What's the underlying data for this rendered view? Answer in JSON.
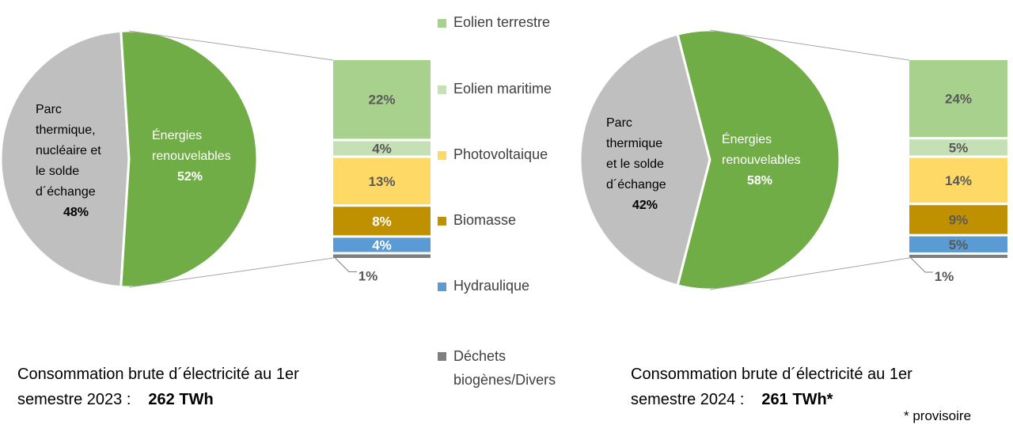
{
  "legend": [
    {
      "label": "Eolien terrestre",
      "color": "#A9D18E"
    },
    {
      "label": "Eolien maritime",
      "color": "#C5E0B4"
    },
    {
      "label": "Photovoltaique",
      "color": "#FFD966"
    },
    {
      "label": "Biomasse",
      "color": "#BF9000"
    },
    {
      "label": "Hydraulique",
      "color": "#5B9BD5"
    },
    {
      "label_lines": [
        "Déchets",
        "biogènes/Divers"
      ],
      "color": "#7F7F7F"
    }
  ],
  "chart_data": [
    {
      "type": "pie",
      "slices": [
        {
          "label_lines": [
            "Parc",
            "thermique,",
            "nucléaire et",
            "le solde",
            "d´échange"
          ],
          "value": 48,
          "value_label": "48%",
          "color": "#BFBFBF"
        },
        {
          "label_lines": [
            "Énergies",
            "renouvelables"
          ],
          "value": 52,
          "value_label": "52%",
          "color": "#70AD47"
        }
      ],
      "breakdown": {
        "type": "stacked-bar",
        "of": "Énergies renouvelables",
        "categories": [
          "Eolien terrestre",
          "Eolien maritime",
          "Photovoltaique",
          "Biomasse",
          "Hydraulique",
          "Déchets biogènes/Divers"
        ],
        "values": [
          22,
          4,
          13,
          8,
          4,
          1
        ],
        "labels": [
          "22%",
          "4%",
          "13%",
          "8%",
          "4%",
          "1%"
        ],
        "label_colors": [
          "#595959",
          "#595959",
          "#595959",
          "#FFFFFF",
          "#FFFFFF",
          "#595959"
        ]
      },
      "caption": {
        "line1": "Consommation brute d´électricité  au 1er",
        "line2": "semestre 2023 :",
        "total": "262 TWh"
      }
    },
    {
      "type": "pie",
      "slices": [
        {
          "label_lines": [
            "Parc",
            "thermique",
            "et le solde",
            "d´échange"
          ],
          "value": 42,
          "value_label": "42%",
          "color": "#BFBFBF"
        },
        {
          "label_lines": [
            "Énergies",
            "renouvelables"
          ],
          "value": 58,
          "value_label": "58%",
          "color": "#70AD47"
        }
      ],
      "breakdown": {
        "type": "stacked-bar",
        "of": "Énergies renouvelables",
        "categories": [
          "Eolien terrestre",
          "Eolien maritime",
          "Photovoltaique",
          "Biomasse",
          "Hydraulique",
          "Déchets biogènes/Divers"
        ],
        "values": [
          24,
          5,
          14,
          9,
          5,
          1
        ],
        "labels": [
          "24%",
          "5%",
          "14%",
          "9%",
          "5%",
          "1%"
        ],
        "label_colors": [
          "#595959",
          "#595959",
          "#595959",
          "#595959",
          "#595959",
          "#595959"
        ]
      },
      "caption": {
        "line1": "Consommation brute d´électricité  au 1er",
        "line2": "semestre 2024 :",
        "total": "261 TWh*"
      }
    }
  ],
  "footnote": "* provisoire"
}
